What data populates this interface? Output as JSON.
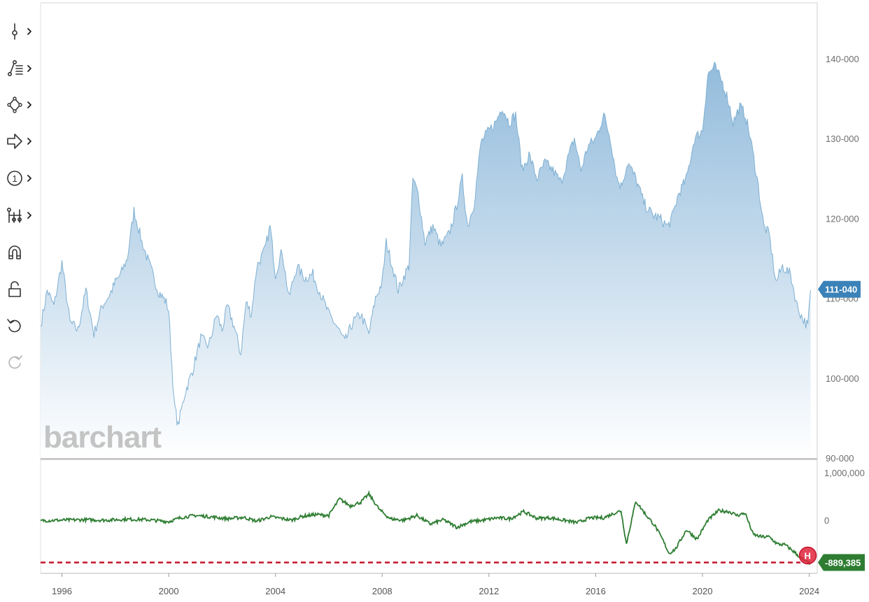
{
  "toolbar": {
    "tools": [
      {
        "name": "crosshair-tool",
        "icon": "crosshair-icon",
        "has_submenu": true
      },
      {
        "name": "trendline-tool",
        "icon": "trendline-icon",
        "has_submenu": true
      },
      {
        "name": "shapes-tool",
        "icon": "shapes-icon",
        "has_submenu": true
      },
      {
        "name": "arrow-tool",
        "icon": "arrow-icon",
        "has_submenu": true
      },
      {
        "name": "annotation-tool",
        "icon": "numbered-marker-icon",
        "has_submenu": true
      },
      {
        "name": "measure-tool",
        "icon": "measure-icon",
        "has_submenu": true
      },
      {
        "name": "magnet-tool",
        "icon": "magnet-icon",
        "has_submenu": false
      },
      {
        "name": "lock-tool",
        "icon": "lock-icon",
        "has_submenu": false
      },
      {
        "name": "undo-tool",
        "icon": "undo-icon",
        "has_submenu": false
      },
      {
        "name": "redo-tool",
        "icon": "redo-icon",
        "has_submenu": false
      }
    ]
  },
  "watermark": "barchart",
  "chart_data": [
    {
      "type": "area",
      "pane": "price",
      "title": "",
      "xlabel": "",
      "ylabel": "",
      "y_ticks": [
        "140-000",
        "130-000",
        "120-000",
        "110-000",
        "100-000",
        "90-000"
      ],
      "y_tick_values": [
        140,
        130,
        120,
        110,
        100,
        90
      ],
      "ylim": [
        90,
        147
      ],
      "current_value_label": "111-040",
      "current_value": 111.125,
      "colors": {
        "line": "#7fb0d2",
        "fill_top": "#9cc1df",
        "fill_bottom": "#ffffff",
        "badge": "#3b82b8"
      },
      "x": [
        1995.2,
        1995.45,
        1995.7,
        1996.0,
        1996.3,
        1996.6,
        1996.9,
        1997.2,
        1997.5,
        1997.8,
        1998.0,
        1998.2,
        1998.45,
        1998.7,
        1999.0,
        1999.3,
        1999.6,
        1999.9,
        2000.0,
        2000.2,
        2000.35,
        2000.6,
        2000.9,
        2001.2,
        2001.5,
        2001.8,
        2002.0,
        2002.2,
        2002.45,
        2002.7,
        2002.9,
        2003.1,
        2003.3,
        2003.6,
        2003.8,
        2004.0,
        2004.25,
        2004.5,
        2004.8,
        2005.1,
        2005.4,
        2005.7,
        2006.0,
        2006.3,
        2006.6,
        2006.9,
        2007.2,
        2007.5,
        2007.75,
        2008.0,
        2008.15,
        2008.35,
        2008.6,
        2008.85,
        2009.0,
        2009.15,
        2009.35,
        2009.6,
        2009.9,
        2010.2,
        2010.5,
        2010.75,
        2011.0,
        2011.2,
        2011.45,
        2011.7,
        2012.0,
        2012.25,
        2012.5,
        2012.75,
        2013.0,
        2013.25,
        2013.5,
        2013.8,
        2014.1,
        2014.4,
        2014.7,
        2015.0,
        2015.2,
        2015.45,
        2015.7,
        2016.0,
        2016.3,
        2016.55,
        2016.8,
        2016.95,
        2017.2,
        2017.5,
        2017.8,
        2018.1,
        2018.4,
        2018.7,
        2018.85,
        2019.1,
        2019.4,
        2019.7,
        2020.0,
        2020.2,
        2020.45,
        2020.75,
        2020.95,
        2021.15,
        2021.4,
        2021.6,
        2021.8,
        2022.05,
        2022.3,
        2022.5,
        2022.75,
        2023.0,
        2023.3,
        2023.55,
        2023.75,
        2023.95,
        2024.05
      ],
      "y": [
        106.5,
        111,
        109,
        114.5,
        107,
        106,
        111,
        105.5,
        109,
        110.5,
        112,
        113,
        115,
        121,
        117,
        114,
        111,
        109.5,
        108.5,
        97,
        94,
        98,
        101,
        105,
        104,
        108,
        106,
        109,
        106.5,
        103,
        109.5,
        108,
        114,
        116,
        119,
        113,
        116,
        110,
        114,
        112.5,
        113,
        110.5,
        108,
        106.5,
        104.5,
        107,
        108,
        105.5,
        110,
        112,
        117,
        114.5,
        111,
        113,
        114,
        125,
        123,
        117,
        119,
        116.5,
        118,
        121,
        125,
        119,
        122,
        129.5,
        131,
        132,
        134,
        132,
        133,
        126,
        128,
        125,
        127,
        126,
        124.5,
        128,
        130,
        126,
        129,
        130,
        133,
        130,
        125,
        124,
        127,
        125,
        122,
        120.5,
        120,
        119,
        120,
        123,
        125,
        130,
        131,
        138,
        139,
        137,
        135,
        132,
        134,
        133,
        130,
        125,
        119,
        118,
        112,
        114,
        113,
        109,
        107.5,
        106.5,
        111
      ]
    },
    {
      "type": "line",
      "pane": "indicator",
      "title": "",
      "xlabel": "",
      "ylabel": "",
      "y_ticks": [
        "1,000,000",
        "0"
      ],
      "y_tick_values": [
        1000000,
        0
      ],
      "ylim": [
        -1000000,
        1000000
      ],
      "current_value_label": "-889,385",
      "current_value": -889385,
      "reference_line": {
        "value": -889385,
        "style": "dashed",
        "color": "#c4152d"
      },
      "marker": {
        "label": "H",
        "color": "#e0243c"
      },
      "colors": {
        "line": "#2e7d32",
        "badge": "#2e7d32"
      },
      "x": [
        1995.2,
        1996.0,
        1996.8,
        1997.6,
        1998.4,
        1999.2,
        2000.0,
        2000.5,
        2001.0,
        2001.6,
        2002.2,
        2002.8,
        2003.3,
        2003.8,
        2004.2,
        2004.6,
        2005.0,
        2005.5,
        2006.0,
        2006.4,
        2006.8,
        2007.2,
        2007.5,
        2007.9,
        2008.3,
        2008.8,
        2009.3,
        2009.8,
        2010.3,
        2010.8,
        2011.3,
        2011.8,
        2012.3,
        2012.8,
        2013.3,
        2013.8,
        2014.3,
        2014.8,
        2015.3,
        2015.8,
        2016.3,
        2016.7,
        2016.95,
        2017.15,
        2017.5,
        2017.9,
        2018.2,
        2018.5,
        2018.75,
        2019.0,
        2019.4,
        2019.8,
        2020.2,
        2020.6,
        2021.0,
        2021.3,
        2021.6,
        2021.9,
        2022.2,
        2022.5,
        2022.8,
        2023.1,
        2023.4,
        2023.7,
        2023.95,
        2024.05
      ],
      "y": [
        -10000,
        0,
        10000,
        0,
        20000,
        10000,
        -30000,
        60000,
        100000,
        70000,
        30000,
        60000,
        -20000,
        70000,
        40000,
        0,
        80000,
        120000,
        100000,
        450000,
        300000,
        380000,
        550000,
        220000,
        30000,
        0,
        100000,
        -80000,
        10000,
        -150000,
        -30000,
        0,
        50000,
        30000,
        180000,
        40000,
        50000,
        0,
        -50000,
        50000,
        50000,
        150000,
        200000,
        -500000,
        400000,
        100000,
        -100000,
        -400000,
        -700000,
        -600000,
        -200000,
        -400000,
        0,
        200000,
        180000,
        100000,
        150000,
        -300000,
        -350000,
        -350000,
        -500000,
        -520000,
        -650000,
        -800000,
        -900000,
        -889385
      ]
    }
  ],
  "x_axis": {
    "ticks": [
      "1996",
      "2000",
      "2004",
      "2008",
      "2012",
      "2016",
      "2020",
      "2024"
    ],
    "tick_values": [
      1996,
      2000,
      2004,
      2008,
      2012,
      2016,
      2020,
      2024
    ],
    "xlim": [
      1995.2,
      2024.3
    ]
  }
}
